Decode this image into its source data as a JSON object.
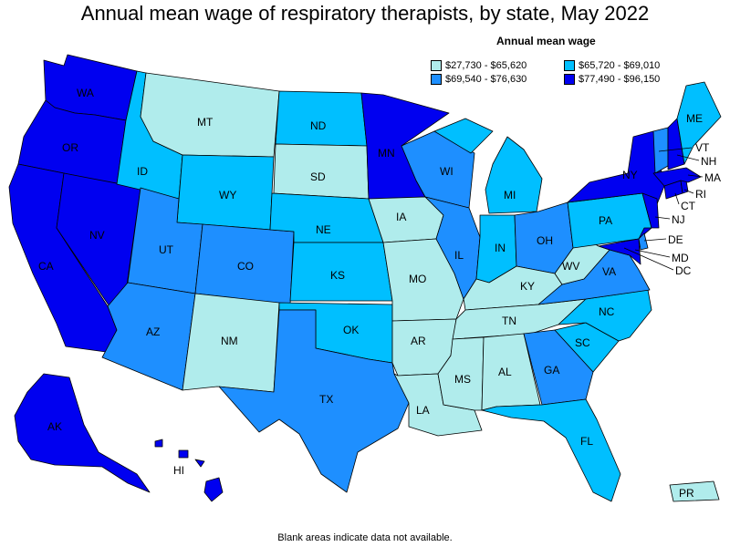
{
  "title": "Annual mean wage of respiratory therapists, by state, May 2022",
  "legend": {
    "title": "Annual mean wage",
    "items": [
      {
        "label": "$27,730 - $65,620",
        "color": "#b0ecec",
        "bin": 1
      },
      {
        "label": "$65,720 - $69,010",
        "color": "#00bfff",
        "bin": 2
      },
      {
        "label": "$69,540 - $76,630",
        "color": "#1e8fff",
        "bin": 3
      },
      {
        "label": "$77,490 - $96,150",
        "color": "#0000f0",
        "bin": 4
      }
    ]
  },
  "footnote": "Blank areas indicate data not available.",
  "states": {
    "WA": {
      "label": "WA",
      "bin": 4
    },
    "OR": {
      "label": "OR",
      "bin": 4
    },
    "CA": {
      "label": "CA",
      "bin": 4
    },
    "NV": {
      "label": "NV",
      "bin": 4
    },
    "ID": {
      "label": "ID",
      "bin": 2
    },
    "MT": {
      "label": "MT",
      "bin": 1
    },
    "WY": {
      "label": "WY",
      "bin": 2
    },
    "UT": {
      "label": "UT",
      "bin": 3
    },
    "AZ": {
      "label": "AZ",
      "bin": 3
    },
    "CO": {
      "label": "CO",
      "bin": 3
    },
    "NM": {
      "label": "NM",
      "bin": 1
    },
    "ND": {
      "label": "ND",
      "bin": 2
    },
    "SD": {
      "label": "SD",
      "bin": 1
    },
    "NE": {
      "label": "NE",
      "bin": 2
    },
    "KS": {
      "label": "KS",
      "bin": 2
    },
    "OK": {
      "label": "OK",
      "bin": 2
    },
    "TX": {
      "label": "TX",
      "bin": 3
    },
    "MN": {
      "label": "MN",
      "bin": 4
    },
    "IA": {
      "label": "IA",
      "bin": 1
    },
    "MO": {
      "label": "MO",
      "bin": 1
    },
    "AR": {
      "label": "AR",
      "bin": 1
    },
    "LA": {
      "label": "LA",
      "bin": 1
    },
    "WI": {
      "label": "WI",
      "bin": 3
    },
    "IL": {
      "label": "IL",
      "bin": 3
    },
    "MI": {
      "label": "MI",
      "bin": 2
    },
    "IN": {
      "label": "IN",
      "bin": 2
    },
    "OH": {
      "label": "OH",
      "bin": 3
    },
    "KY": {
      "label": "KY",
      "bin": 1
    },
    "TN": {
      "label": "TN",
      "bin": 1
    },
    "MS": {
      "label": "MS",
      "bin": 1
    },
    "AL": {
      "label": "AL",
      "bin": 1
    },
    "GA": {
      "label": "GA",
      "bin": 3
    },
    "FL": {
      "label": "FL",
      "bin": 2
    },
    "SC": {
      "label": "SC",
      "bin": 2
    },
    "NC": {
      "label": "NC",
      "bin": 2
    },
    "VA": {
      "label": "VA",
      "bin": 3
    },
    "WV": {
      "label": "WV",
      "bin": 1
    },
    "PA": {
      "label": "PA",
      "bin": 2
    },
    "NY": {
      "label": "NY",
      "bin": 4
    },
    "NJ": {
      "label": "NJ",
      "bin": 4
    },
    "DE": {
      "label": "DE",
      "bin": 3
    },
    "MD": {
      "label": "MD",
      "bin": 4
    },
    "DC": {
      "label": "DC",
      "bin": 4
    },
    "CT": {
      "label": "CT",
      "bin": 4
    },
    "RI": {
      "label": "RI",
      "bin": 4
    },
    "MA": {
      "label": "MA",
      "bin": 4
    },
    "VT": {
      "label": "VT",
      "bin": 3
    },
    "NH": {
      "label": "NH",
      "bin": 4
    },
    "ME": {
      "label": "ME",
      "bin": 2
    },
    "AK": {
      "label": "AK",
      "bin": 4
    },
    "HI": {
      "label": "HI",
      "bin": 4
    },
    "PR": {
      "label": "PR",
      "bin": 1
    }
  }
}
